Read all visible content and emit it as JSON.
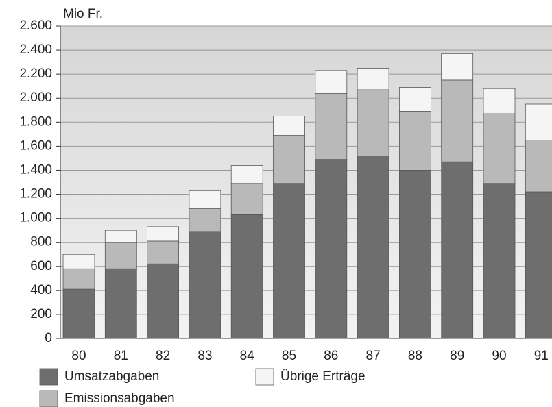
{
  "chart_data": {
    "type": "stacked-bar",
    "y_label": "Mio Fr.",
    "categories": [
      "80",
      "81",
      "82",
      "83",
      "84",
      "85",
      "86",
      "87",
      "88",
      "89",
      "90",
      "91"
    ],
    "series": [
      {
        "name": "Umsatzabgaben",
        "color": "#6e6e6e",
        "values": [
          410,
          580,
          620,
          890,
          1030,
          1290,
          1490,
          1520,
          1400,
          1470,
          1290,
          1220
        ]
      },
      {
        "name": "Emissionsabgaben",
        "color": "#b9b9b9",
        "values": [
          170,
          220,
          190,
          190,
          260,
          400,
          550,
          550,
          490,
          680,
          580,
          430
        ]
      },
      {
        "name": "Übrige Erträge",
        "color": "#f5f5f5",
        "values": [
          120,
          100,
          120,
          150,
          150,
          160,
          190,
          180,
          200,
          220,
          210,
          300
        ]
      }
    ],
    "ylim": [
      0,
      2600
    ],
    "yticks": [
      0,
      200,
      400,
      600,
      800,
      {
        "value": 1000,
        "label": "1.000"
      },
      {
        "value": 1200,
        "label": "1.200"
      },
      {
        "value": 1400,
        "label": "1.400"
      },
      {
        "value": 1600,
        "label": "1.600"
      },
      {
        "value": 1800,
        "label": "1.800"
      },
      {
        "value": 2000,
        "label": "2.000"
      },
      {
        "value": 2200,
        "label": "2.200"
      },
      {
        "value": 2400,
        "label": "2.400"
      },
      {
        "value": 2600,
        "label": "2.600"
      }
    ],
    "grid": true
  }
}
